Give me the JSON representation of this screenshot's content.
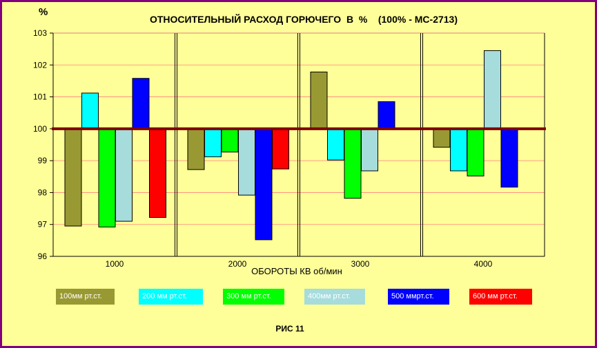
{
  "chart_data": {
    "type": "bar",
    "title": "ОТНОСИТЕЛЬНЫЙ РАСХОД ГОРЮЧЕГО  В  %    (100% - МС-2713)",
    "unit_label": "%",
    "xlabel": "ОБОРОТЫ  КВ  об/мин",
    "caption": "РИС 11",
    "categories": [
      "1000",
      "2000",
      "3000",
      "4000"
    ],
    "ylim": [
      96,
      103
    ],
    "yticks": [
      "96",
      "97",
      "98",
      "99",
      "100",
      "101",
      "102",
      "103"
    ],
    "baseline": 100,
    "grid": true,
    "legend_position": "bottom",
    "series": [
      {
        "name": "100мм рт.ст.",
        "color": "#999933",
        "values": [
          96.95,
          98.72,
          101.78,
          99.42
        ]
      },
      {
        "name": "200 мм рт.ст.",
        "color": "#00ffff",
        "values": [
          101.12,
          99.12,
          99.02,
          98.68
        ]
      },
      {
        "name": "300 мм рт.ст.",
        "color": "#00ff00",
        "values": [
          96.92,
          99.27,
          97.82,
          98.52
        ]
      },
      {
        "name": "400мм рт.ст.",
        "color": "#a6dcdc",
        "values": [
          97.1,
          97.92,
          98.68,
          102.45
        ]
      },
      {
        "name": "500 ммрт.ст.",
        "color": "#0000ff",
        "values": [
          101.58,
          96.52,
          100.85,
          98.17
        ]
      },
      {
        "name": "600 мм рт.ст.",
        "color": "#ff0000",
        "values": [
          97.22,
          98.74,
          null,
          null
        ]
      }
    ],
    "colors": {
      "background": "#ffff99",
      "frame": "#800080",
      "baseline": "#800000",
      "gridline": "#ff8080"
    }
  }
}
